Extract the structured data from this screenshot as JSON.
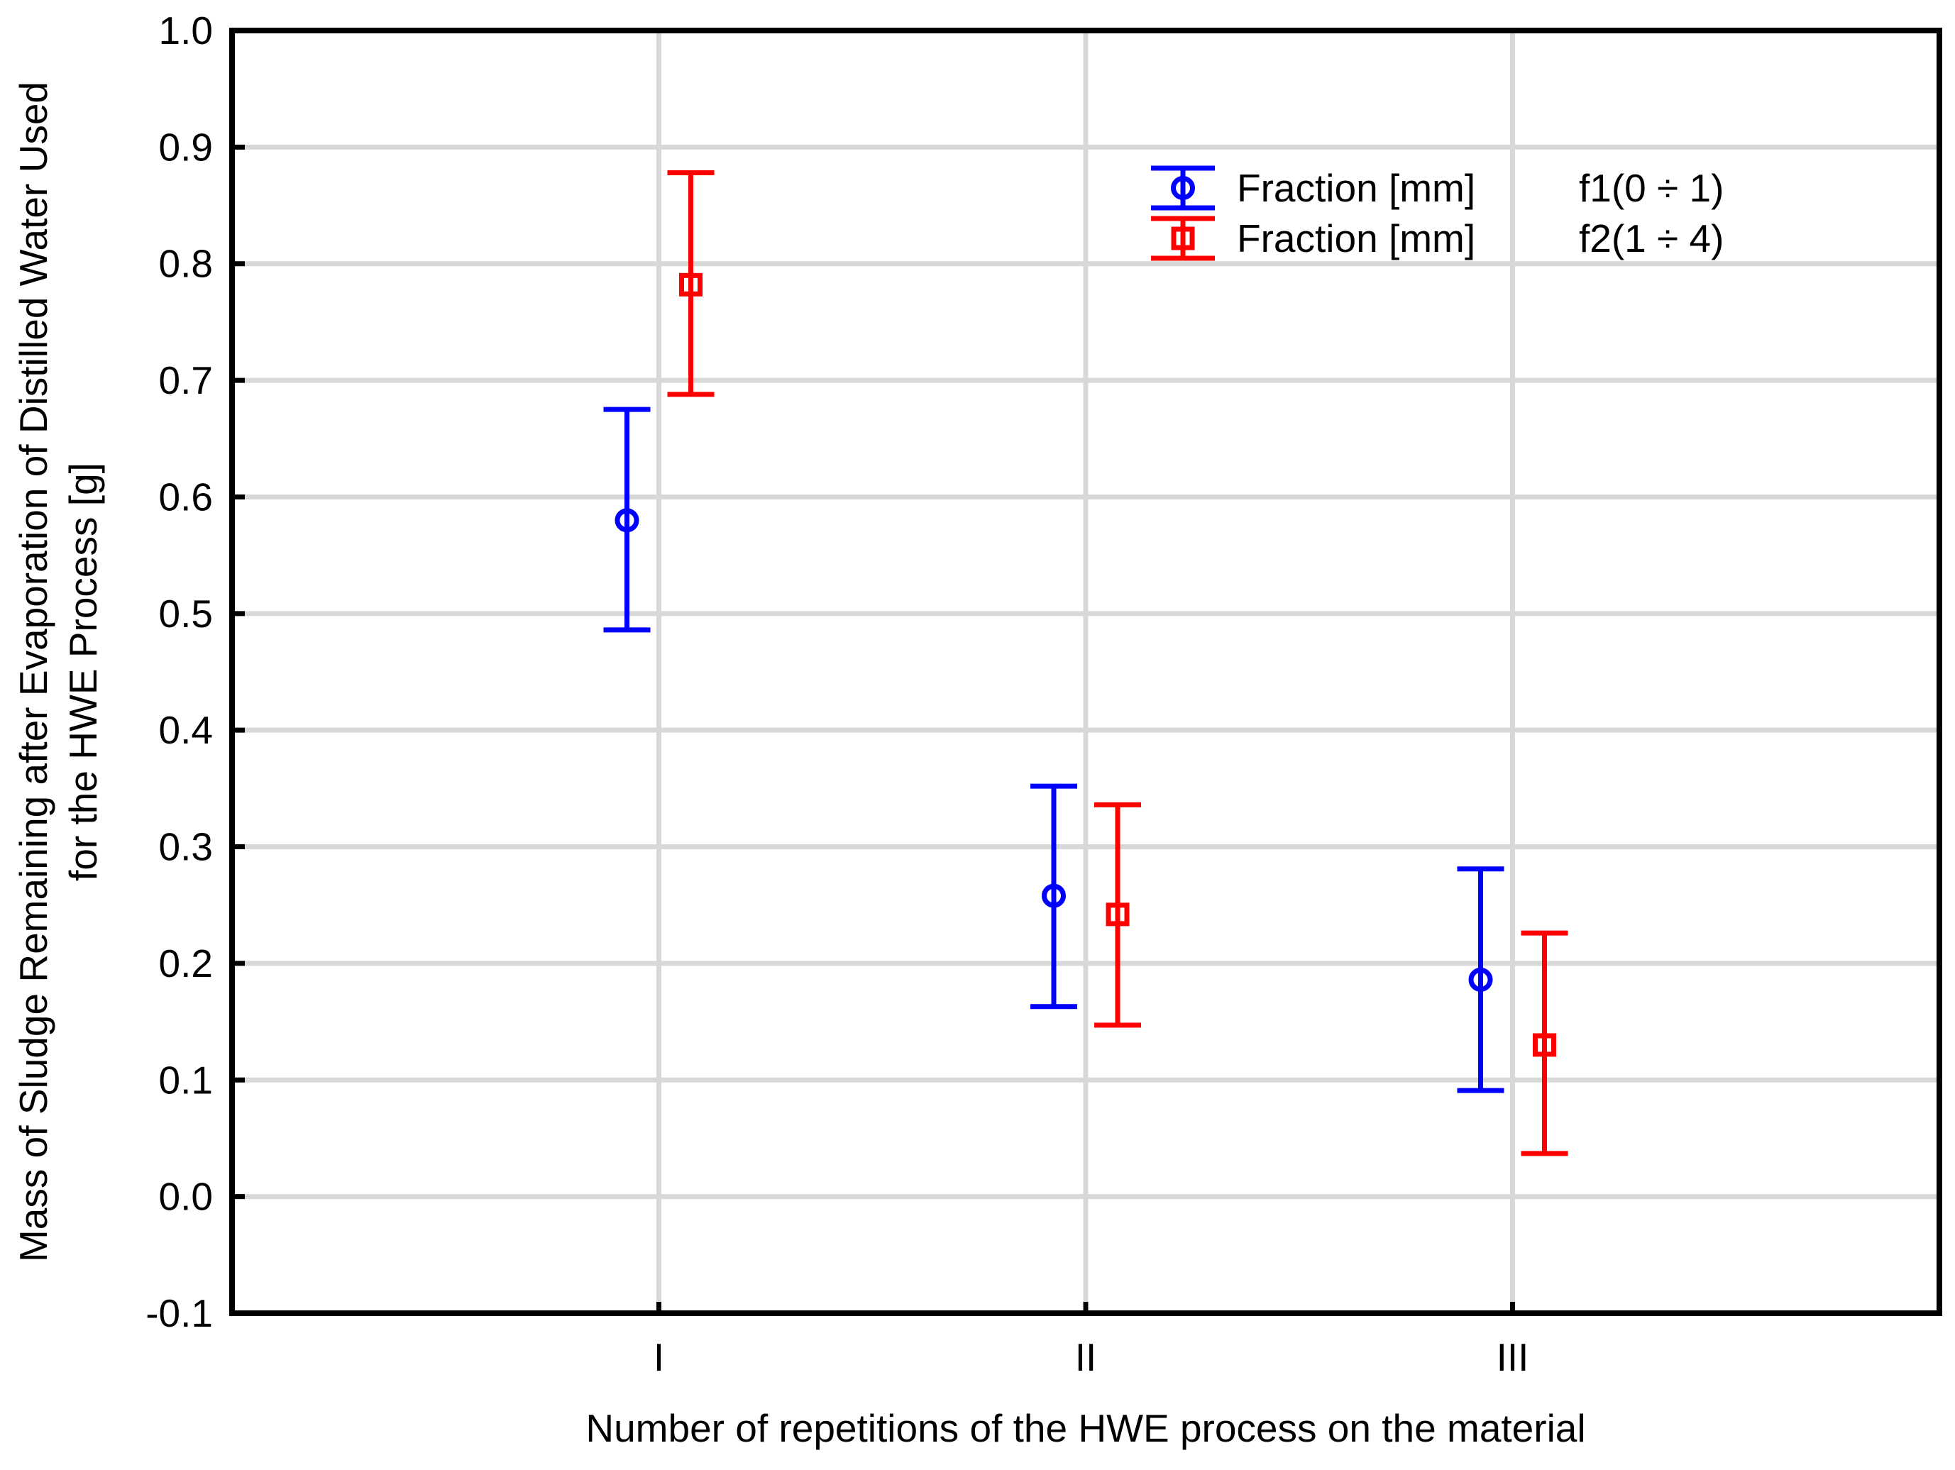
{
  "chart_data": {
    "type": "errorbar-scatter",
    "title": "",
    "xlabel": "Number of repetitions of the HWE process on the material",
    "ylabel_lines": [
      "Mass of Sludge Remaining after Evaporation of Distilled Water Used",
      "for the HWE Process [g]"
    ],
    "categories": [
      "I",
      "II",
      "III"
    ],
    "x_positions": [
      1,
      2,
      3
    ],
    "xlim": [
      0,
      4
    ],
    "ylim": [
      -0.1,
      1.0
    ],
    "y_tick_labels": [
      "1.0",
      "0.9",
      "0.8",
      "0.7",
      "0.6",
      "0.5",
      "0.4",
      "0.3",
      "0.2",
      "0.1",
      "0.0",
      "-0.1"
    ],
    "grid": {
      "horizontal": true,
      "vertical_at_categories": true,
      "color": "#d8d8d8"
    },
    "frame_color": "#000000",
    "legend_position": "top-right-inside",
    "series": [
      {
        "name": "f1",
        "legend_prefix": "Fraction [mm]",
        "legend_value": "f1(0 ÷ 1)",
        "color": "#0000ff",
        "marker": "circle",
        "side": -1,
        "means": [
          0.58,
          0.258,
          0.186
        ],
        "ci_low": [
          0.486,
          0.163,
          0.091
        ],
        "ci_high": [
          0.675,
          0.352,
          0.281
        ]
      },
      {
        "name": "f2",
        "legend_prefix": "Fraction [mm]",
        "legend_value": "f2(1 ÷ 4)",
        "color": "#ff0000",
        "marker": "square",
        "side": 1,
        "means": [
          0.782,
          0.242,
          0.13
        ],
        "ci_low": [
          0.688,
          0.147,
          0.037
        ],
        "ci_high": [
          0.878,
          0.336,
          0.226
        ]
      }
    ]
  }
}
